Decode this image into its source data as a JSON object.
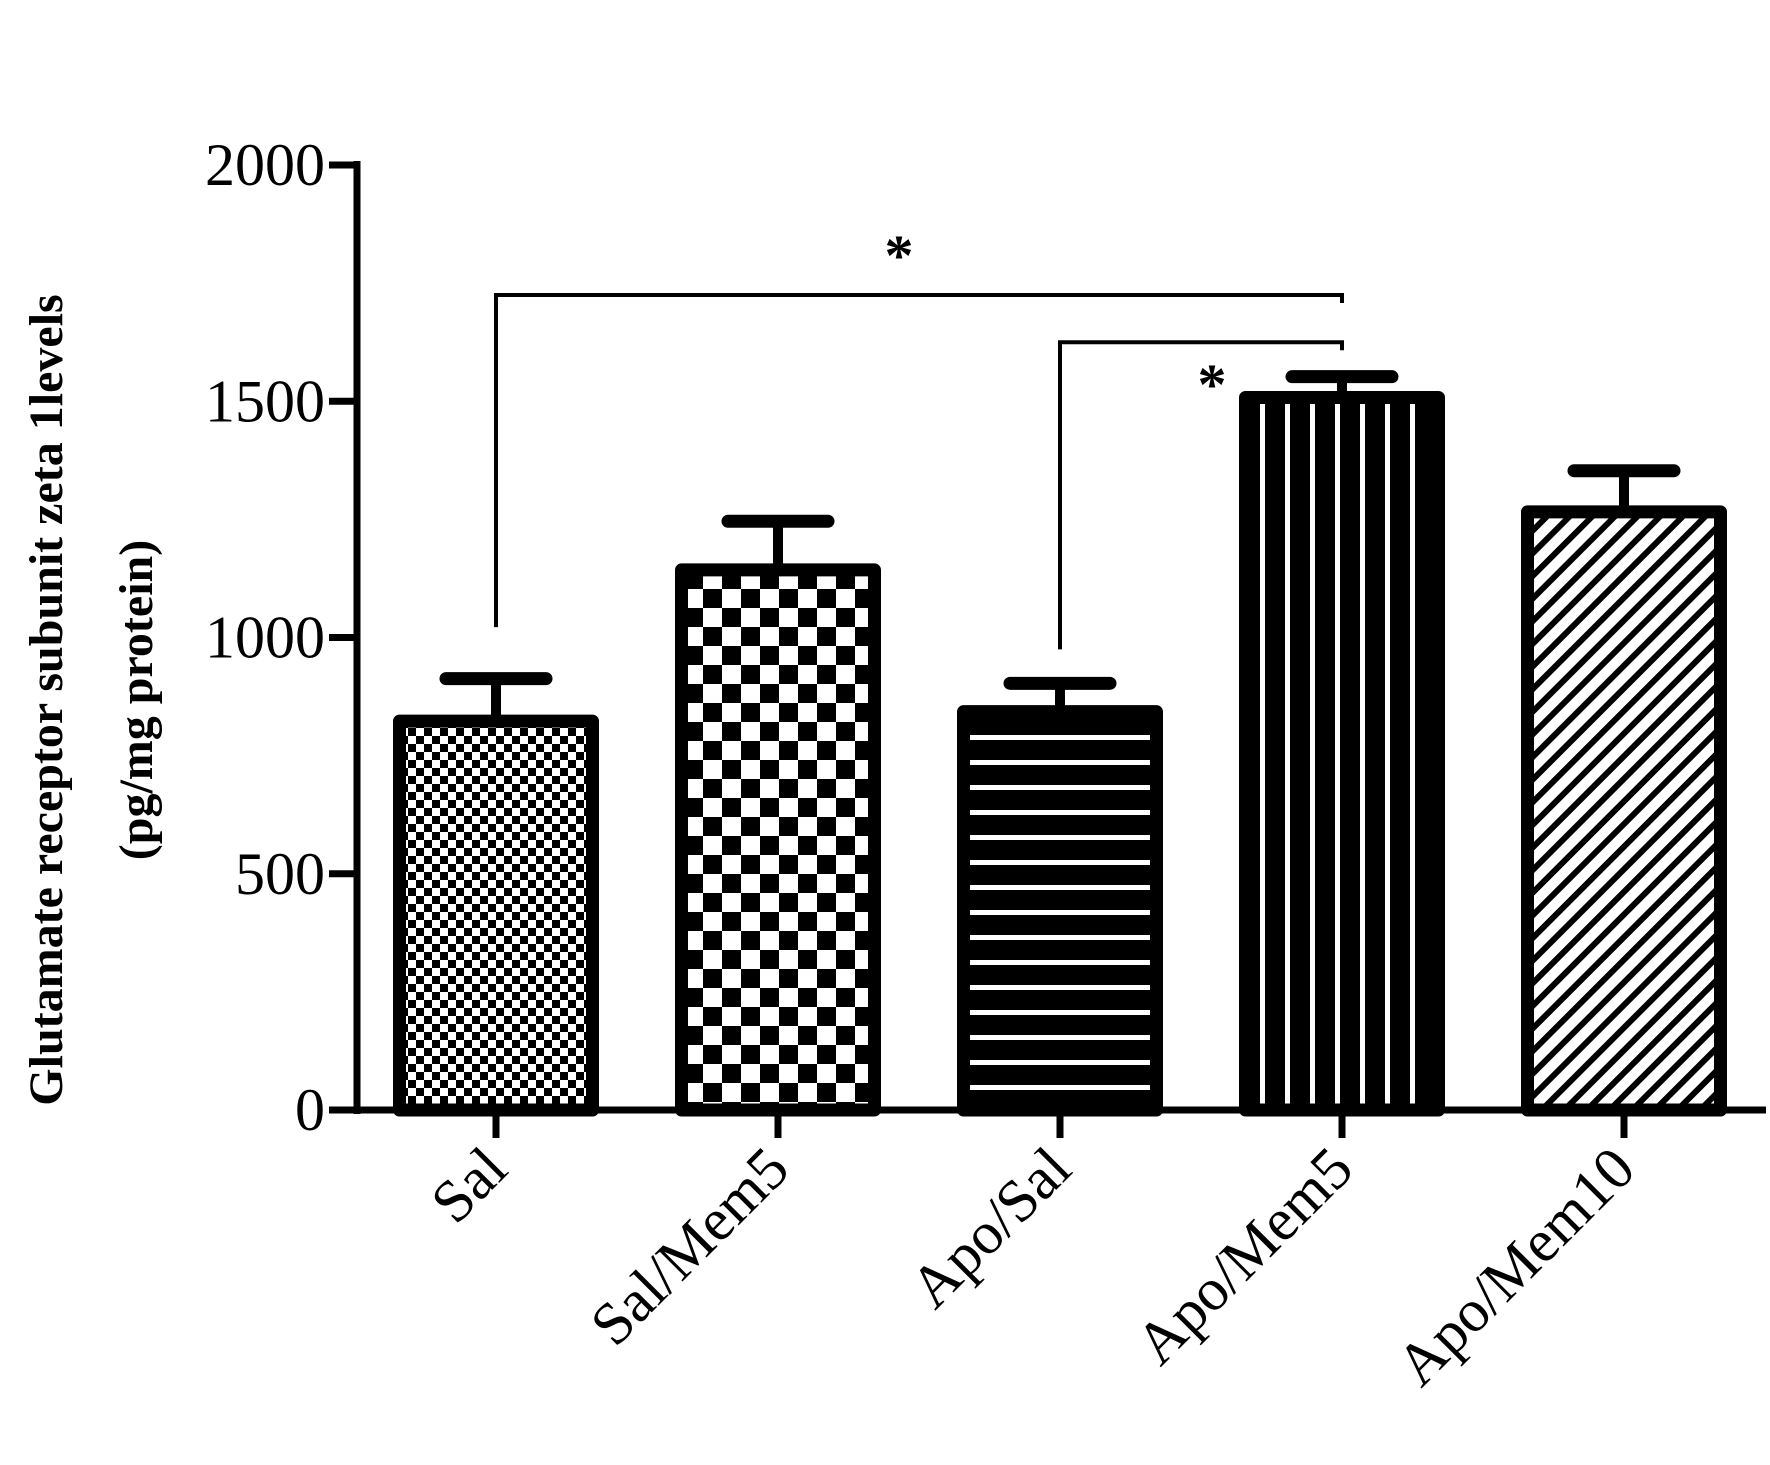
{
  "chart_data": {
    "type": "bar",
    "title": "",
    "xlabel": "",
    "ylabel": [
      "Glutamate receptor subunit zeta 1levels",
      "(pg/mg protein)"
    ],
    "ylim": [
      0,
      2000
    ],
    "yticks": [
      "0",
      "500",
      "1000",
      "1500",
      "2000"
    ],
    "categories": [
      "Sal",
      "Sal/Mem5",
      "Apo/Sal",
      "Apo/Mem5",
      "Apo/Mem10"
    ],
    "values": [
      823,
      1143,
      843,
      1508,
      1266
    ],
    "error_upper": [
      913,
      1246,
      903,
      1552,
      1353
    ],
    "patterns": [
      "fine-checker",
      "coarse-checker",
      "horizontal-lines",
      "vertical-lines",
      "diagonal-hatch"
    ],
    "significance": [
      {
        "from": "Sal",
        "to": "Apo/Mem5",
        "label": "*",
        "level": 1725,
        "left_drop": 1022
      },
      {
        "from": "Apo/Sal",
        "to": "Apo/Mem5",
        "label": "*",
        "level": 1625,
        "left_drop": 975
      }
    ],
    "grid": false,
    "color": "#000000"
  }
}
